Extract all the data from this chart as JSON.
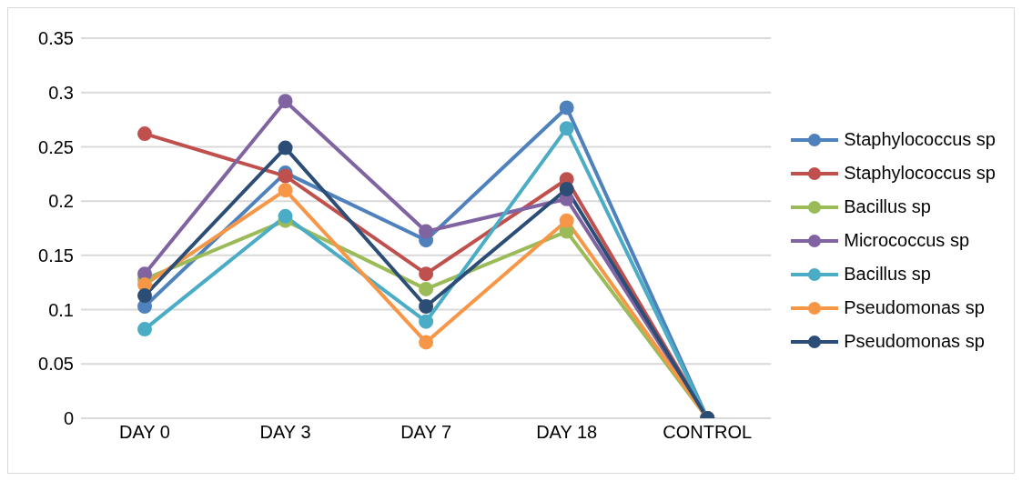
{
  "chart_data": {
    "type": "line",
    "categories": [
      "DAY 0",
      "DAY 3",
      "DAY 7",
      "DAY 18",
      "CONTROL"
    ],
    "series": [
      {
        "name": "Staphylococcus sp",
        "color": "#4f81bd",
        "values": [
          0.103,
          0.226,
          0.164,
          0.286,
          0
        ]
      },
      {
        "name": "Staphylococcus sp",
        "color": "#c0504d",
        "values": [
          0.262,
          0.223,
          0.133,
          0.22,
          0
        ]
      },
      {
        "name": "Bacillus sp",
        "color": "#9bbb59",
        "values": [
          0.128,
          0.182,
          0.119,
          0.172,
          0
        ]
      },
      {
        "name": "Micrococcus sp",
        "color": "#8064a2",
        "values": [
          0.133,
          0.292,
          0.172,
          0.202,
          0
        ]
      },
      {
        "name": "Bacillus sp",
        "color": "#4bacc6",
        "values": [
          0.082,
          0.186,
          0.089,
          0.267,
          0
        ]
      },
      {
        "name": "Pseudomonas sp",
        "color": "#f79646",
        "values": [
          0.123,
          0.21,
          0.07,
          0.182,
          0
        ]
      },
      {
        "name": "Pseudomonas sp",
        "color": "#2c4d75",
        "values": [
          0.113,
          0.249,
          0.103,
          0.211,
          0
        ]
      }
    ],
    "ylim": [
      0,
      0.35
    ],
    "yticks": [
      0,
      0.05,
      0.1,
      0.15,
      0.2,
      0.25,
      0.3,
      0.35
    ],
    "grid": "y",
    "legend": "right",
    "marker": "circle",
    "line_style": "solid"
  }
}
